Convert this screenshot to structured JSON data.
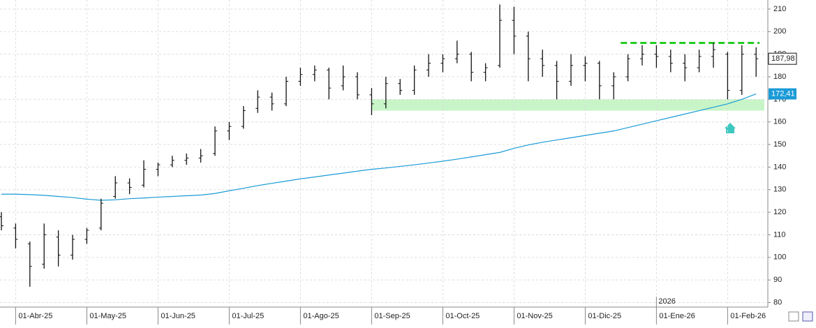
{
  "chart_data": {
    "type": "ohlc",
    "year_label": "2026",
    "categories": [
      null,
      "01-Abr-25",
      null,
      null,
      null,
      null,
      "01-May-25",
      null,
      null,
      null,
      null,
      "01-Jun-25",
      null,
      null,
      null,
      null,
      "01-Jul-25",
      null,
      null,
      null,
      null,
      "01-Ago-25",
      null,
      null,
      null,
      null,
      "01-Sep-25",
      null,
      null,
      null,
      null,
      "01-Oct-25",
      null,
      null,
      null,
      null,
      "01-Nov-25",
      null,
      null,
      null,
      null,
      "01-Dic-25",
      null,
      null,
      null,
      null,
      "01-Ene-26",
      null,
      null,
      null,
      null,
      "01-Feb-26",
      null,
      null
    ],
    "open": [
      118,
      113,
      106,
      97,
      109,
      101,
      108,
      113,
      127,
      133,
      132,
      139,
      141,
      143,
      144,
      146,
      156,
      158,
      166,
      171,
      168,
      178,
      181,
      183,
      176,
      180,
      172,
      168,
      177,
      174,
      183,
      186,
      188,
      190,
      182,
      185,
      205,
      198,
      188,
      185,
      178,
      185,
      186,
      176,
      180,
      188,
      190,
      189,
      186,
      184,
      189,
      190,
      174,
      190
    ],
    "high": [
      120,
      115,
      107,
      115,
      112,
      110,
      113,
      126,
      136,
      135,
      143,
      142,
      145,
      146,
      148,
      158,
      160,
      167,
      174,
      173,
      180,
      184,
      185,
      184,
      185,
      182,
      175,
      180,
      179,
      185,
      190,
      190,
      196,
      191,
      186,
      212,
      211,
      200,
      192,
      187,
      190,
      189,
      187,
      182,
      190,
      194,
      194,
      192,
      190,
      192,
      195,
      191,
      194,
      193
    ],
    "low": [
      112,
      104,
      87,
      95,
      96,
      99,
      106,
      112,
      126,
      128,
      131,
      136,
      140,
      141,
      142,
      145,
      152,
      157,
      164,
      165,
      167,
      176,
      178,
      170,
      174,
      170,
      163,
      166,
      172,
      172,
      180,
      182,
      186,
      178,
      178,
      184,
      190,
      178,
      180,
      170,
      176,
      178,
      170,
      170,
      178,
      185,
      184,
      182,
      178,
      182,
      184,
      170,
      172,
      180
    ],
    "close": [
      114,
      108,
      96,
      110,
      101,
      108,
      112,
      124,
      133,
      131,
      139,
      141,
      143,
      144,
      145,
      156,
      158,
      165,
      171,
      168,
      178,
      181,
      183,
      175,
      180,
      172,
      168,
      177,
      174,
      183,
      186,
      188,
      190,
      182,
      184,
      205,
      198,
      188,
      185,
      178,
      185,
      186,
      176,
      180,
      188,
      190,
      189,
      186,
      184,
      189,
      192,
      174,
      190,
      187.98
    ],
    "close_labels": [
      null,
      null,
      null,
      null,
      null,
      null,
      null,
      null,
      null,
      null,
      null,
      null,
      null,
      null,
      null,
      null,
      null,
      null,
      null,
      null,
      null,
      null,
      null,
      null,
      null,
      null,
      null,
      null,
      null,
      null,
      null,
      null,
      null,
      null,
      null,
      null,
      null,
      null,
      null,
      null,
      null,
      null,
      null,
      null,
      null,
      null,
      null,
      null,
      null,
      null,
      null,
      null,
      null,
      "187,98"
    ],
    "color": "#111111",
    "moving_average": {
      "color": "#1a9bd7",
      "values": [
        128,
        128,
        127.8,
        127.5,
        127,
        126.5,
        125.8,
        125.3,
        125.5,
        126,
        126.3,
        126.7,
        127,
        127.3,
        127.6,
        128.3,
        129.5,
        130.6,
        131.8,
        132.8,
        133.8,
        134.8,
        135.6,
        136.5,
        137.3,
        138.2,
        139,
        139.6,
        140.3,
        141,
        141.8,
        142.6,
        143.5,
        144.5,
        145.5,
        146.5,
        148.3,
        149.8,
        151,
        152,
        153,
        154,
        155,
        156,
        157.5,
        159,
        160.5,
        162,
        163.5,
        165,
        166.5,
        168,
        170,
        172.41
      ],
      "value_labels": [
        null,
        null,
        null,
        null,
        null,
        null,
        null,
        null,
        null,
        null,
        null,
        null,
        null,
        null,
        null,
        null,
        null,
        null,
        null,
        null,
        null,
        null,
        null,
        null,
        null,
        null,
        null,
        null,
        null,
        null,
        null,
        null,
        null,
        null,
        null,
        null,
        null,
        null,
        null,
        null,
        null,
        null,
        null,
        null,
        null,
        null,
        null,
        null,
        null,
        null,
        null,
        null,
        null,
        "172,41"
      ]
    },
    "resistance_level": 195,
    "resistance_color": "#22cc22",
    "support_zone": [
      165,
      170
    ],
    "support_color": "#c8f5c8",
    "ylim": [
      78,
      214
    ],
    "yticks": [
      80,
      90,
      100,
      110,
      120,
      130,
      140,
      150,
      160,
      170,
      180,
      190,
      200,
      210
    ],
    "grid": true
  }
}
